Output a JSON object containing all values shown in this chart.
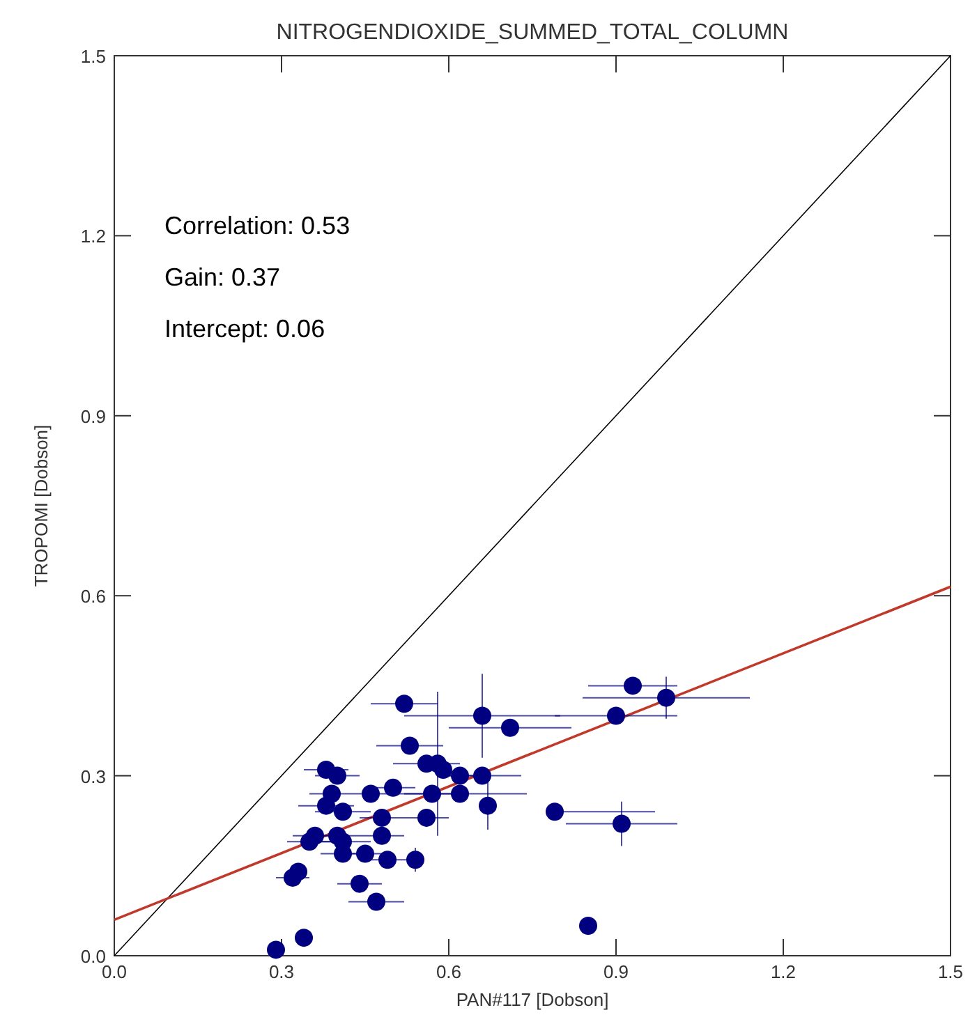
{
  "chart_data": {
    "type": "scatter",
    "title": "NITROGENDIOXIDE_SUMMED_TOTAL_COLUMN",
    "xlabel": "PAN#117 [Dobson]",
    "ylabel": "TROPOMI [Dobson]",
    "annotations": [
      "Correlation: 0.53",
      "Gain: 0.37",
      "Intercept: 0.06"
    ],
    "xlim": [
      0,
      1.5
    ],
    "ylim": [
      0,
      1.5
    ],
    "xticks": [
      {
        "value": 0,
        "label": "0.0"
      },
      0.3,
      0.6,
      0.9,
      1.2,
      1.5
    ],
    "yticks": [
      {
        "value": 0,
        "label": "0.0"
      },
      0.3,
      0.6,
      0.9,
      1.2,
      1.5
    ],
    "grid": false,
    "series": [
      {
        "type": "line",
        "color": "#000000",
        "x": [
          0,
          1.5
        ],
        "values": [
          0,
          1.5
        ]
      },
      {
        "type": "line",
        "color": "#c0392b",
        "x": [
          0,
          1.5
        ],
        "values": [
          0.06,
          0.615
        ]
      },
      {
        "color": "#000080",
        "marker": "circle",
        "x": [
          0.52,
          0.66,
          0.71,
          0.53,
          0.56,
          0.58,
          0.59,
          0.62,
          0.66,
          0.62,
          0.57,
          0.67,
          0.79,
          0.38,
          0.4,
          0.46,
          0.5,
          0.39,
          0.38,
          0.41,
          0.48,
          0.56,
          0.36,
          0.35,
          0.4,
          0.41,
          0.41,
          0.48,
          0.45,
          0.49,
          0.54,
          0.33,
          0.32,
          0.44,
          0.47,
          0.34,
          0.29,
          0.85,
          0.93,
          0.9,
          0.99,
          0.91
        ],
        "values": [
          0.42,
          0.4,
          0.38,
          0.35,
          0.32,
          0.32,
          0.31,
          0.3,
          0.3,
          0.27,
          0.27,
          0.25,
          0.24,
          0.31,
          0.3,
          0.27,
          0.28,
          0.27,
          0.25,
          0.24,
          0.23,
          0.23,
          0.2,
          0.19,
          0.2,
          0.19,
          0.17,
          0.2,
          0.17,
          0.16,
          0.16,
          0.14,
          0.13,
          0.12,
          0.09,
          0.03,
          0.01,
          0.05,
          0.45,
          0.4,
          0.43,
          0.22
        ],
        "xerrors": [
          0.06,
          0.14,
          0.11,
          0.06,
          0.06,
          null,
          null,
          0.04,
          0.07,
          0.12,
          0.05,
          null,
          [
            0.78,
            0.97
          ],
          0.04,
          0.04,
          0.03,
          0.04,
          0.04,
          0.05,
          0.05,
          0.04,
          0.04,
          0.04,
          0.04,
          0.04,
          0.05,
          0.04,
          0.04,
          0.04,
          0.04,
          null,
          null,
          0.03,
          0.04,
          0.05,
          null,
          null,
          null,
          0.08,
          0.11,
          0.15,
          0.1
        ],
        "errors": [
          null,
          0.07,
          null,
          null,
          null,
          0.12,
          null,
          null,
          null,
          null,
          null,
          0.04,
          null,
          null,
          null,
          null,
          null,
          null,
          null,
          null,
          null,
          null,
          null,
          null,
          null,
          null,
          null,
          null,
          null,
          null,
          0.02,
          null,
          null,
          null,
          null,
          null,
          null,
          null,
          null,
          null,
          0.035,
          0.037
        ]
      }
    ]
  }
}
